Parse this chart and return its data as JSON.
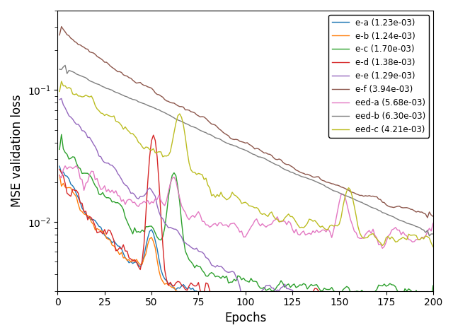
{
  "series": [
    {
      "label": "e-a (1.23e-03)",
      "color": "#1f77b4",
      "final": 0.00123
    },
    {
      "label": "e-b (1.24e-03)",
      "color": "#ff7f0e",
      "final": 0.00124
    },
    {
      "label": "e-c (1.70e-03)",
      "color": "#2ca02c",
      "final": 0.0017
    },
    {
      "label": "e-d (1.38e-03)",
      "color": "#d62728",
      "final": 0.00138
    },
    {
      "label": "e-e (1.29e-03)",
      "color": "#9467bd",
      "final": 0.00129
    },
    {
      "label": "e-f (3.94e-03)",
      "color": "#8c564b",
      "final": 0.00394
    },
    {
      "label": "eed-a (5.68e-03)",
      "color": "#e377c2",
      "final": 0.00568
    },
    {
      "label": "eed-b (6.30e-03)",
      "color": "#7f7f7f",
      "final": 0.0063
    },
    {
      "label": "eed-c (4.21e-03)",
      "color": "#bcbd22",
      "final": 0.00421
    }
  ],
  "xlabel": "Epochs",
  "ylabel": "MSE validation loss",
  "xlim": [
    0,
    200
  ],
  "n_epochs": 200,
  "seed": 42,
  "ylim": [
    0.003,
    0.4
  ]
}
